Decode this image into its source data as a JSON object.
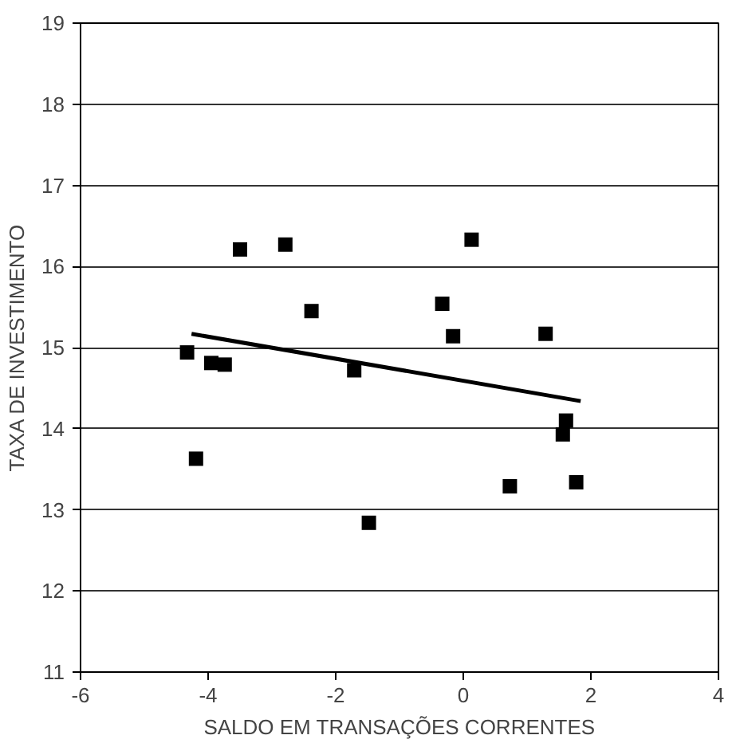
{
  "chart_data": {
    "type": "scatter",
    "xlabel": "SALDO EM TRANSAÇÕES CORRENTES",
    "ylabel": "TAXA DE INVESTIMENTO",
    "xlim": [
      -6,
      4
    ],
    "xticks": [
      -6,
      -4,
      -2,
      0,
      2,
      4
    ],
    "ylim": [
      11,
      19
    ],
    "yticks": [
      11,
      12,
      13,
      14,
      15,
      16,
      17,
      18,
      19
    ],
    "grid": "y",
    "series": [
      {
        "marker": "square",
        "color": "#000000",
        "x": [
          -4.33,
          -4.19,
          -3.95,
          -3.74,
          -3.5,
          -2.79,
          -2.38,
          -1.71,
          -1.48,
          -0.33,
          -0.16,
          0.13,
          1.29,
          0.73,
          1.61,
          1.56,
          1.77
        ],
        "values": [
          14.94,
          13.63,
          14.81,
          14.79,
          16.21,
          16.27,
          15.45,
          14.72,
          12.84,
          15.54,
          15.14,
          16.33,
          15.17,
          13.29,
          14.1,
          13.93,
          13.34
        ]
      },
      {
        "type": "line",
        "color": "#000000",
        "x": [
          -4.26,
          1.84
        ],
        "values": [
          15.17,
          14.34
        ]
      }
    ]
  }
}
